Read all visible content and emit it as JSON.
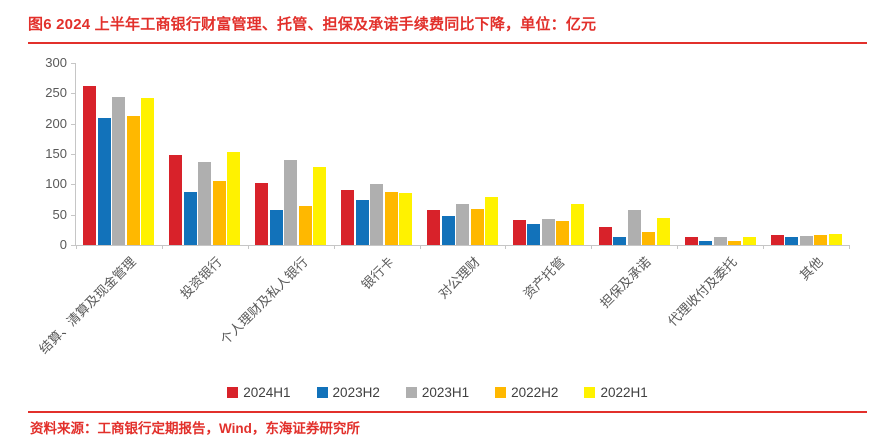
{
  "figure": {
    "title": "图6  2024 上半年工商银行财富管理、托管、担保及承诺手续费同比下降，单位：亿元",
    "source": "资料来源：工商银行定期报告，Wind，东海证券研究所",
    "accent_color": "#E2302B"
  },
  "chart_data": {
    "type": "bar",
    "title": "2024 上半年工商银行财富管理、托管、担保及承诺手续费同比下降",
    "unit": "亿元",
    "categories": [
      "结算、清算及现金管理",
      "投资银行",
      "个人理财及私人银行",
      "银行卡",
      "对公理财",
      "资产托管",
      "担保及承诺",
      "代理收付及委托",
      "其他"
    ],
    "series": [
      {
        "name": "2024H1",
        "color": "#D8222A",
        "values": [
          262,
          148,
          103,
          90,
          57,
          41,
          30,
          14,
          17
        ]
      },
      {
        "name": "2023H2",
        "color": "#1272BA",
        "values": [
          210,
          88,
          58,
          75,
          48,
          35,
          14,
          6,
          13
        ]
      },
      {
        "name": "2023H1",
        "color": "#AFAFAF",
        "values": [
          244,
          137,
          140,
          100,
          68,
          43,
          58,
          13,
          15
        ]
      },
      {
        "name": "2022H2",
        "color": "#FFB800",
        "values": [
          213,
          106,
          64,
          87,
          59,
          39,
          21,
          6,
          16
        ]
      },
      {
        "name": "2022H1",
        "color": "#FFF200",
        "values": [
          242,
          154,
          129,
          85,
          79,
          67,
          45,
          14,
          18
        ]
      }
    ],
    "ylim": [
      0,
      300
    ],
    "yticks": [
      0,
      50,
      100,
      150,
      200,
      250,
      300
    ],
    "grid": false,
    "legend_position": "bottom",
    "axis_color": "#C6C6C6",
    "tick_label_color": "#595959"
  }
}
